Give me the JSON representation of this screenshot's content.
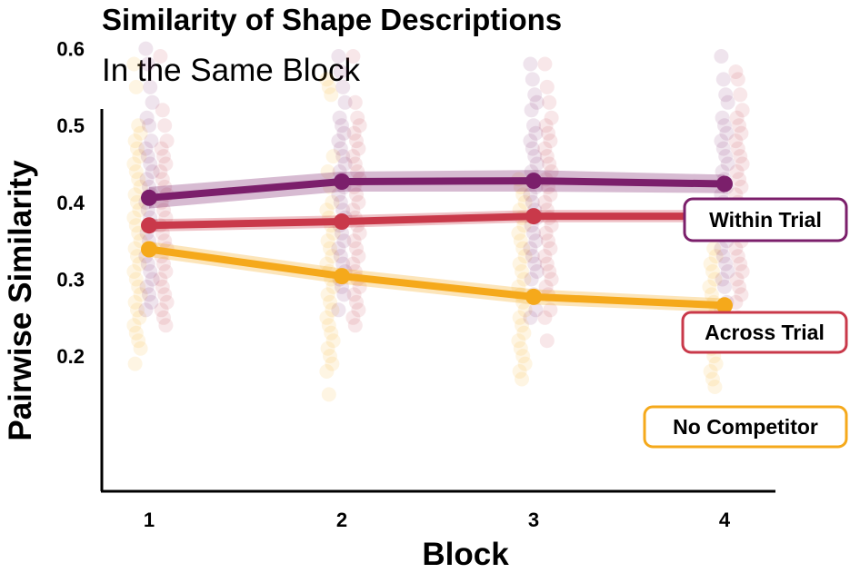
{
  "chart_data": {
    "type": "line",
    "title": "Similarity of Shape Descriptions",
    "subtitle": "In the Same Block",
    "xlabel": "Block",
    "ylabel": "Pairwise Similarity",
    "categories": [
      "1",
      "2",
      "3",
      "4"
    ],
    "yticks": [
      "0.2",
      "0.3",
      "0.4",
      "0.5",
      "0.6"
    ],
    "ylim": [
      0.13,
      0.62
    ],
    "grid": false,
    "legend": "direct labels at right",
    "series": [
      {
        "name": "Within Trial",
        "color": "#7b1f6b",
        "values": [
          0.406,
          0.427,
          0.428,
          0.424
        ],
        "ci_low": [
          0.392,
          0.414,
          0.414,
          0.412
        ],
        "ci_high": [
          0.42,
          0.44,
          0.442,
          0.436
        ],
        "points": [
          [
            0.6,
            0.58,
            0.55,
            0.53,
            0.51,
            0.5,
            0.48,
            0.47,
            0.46,
            0.45,
            0.44,
            0.43,
            0.42,
            0.41,
            0.4,
            0.39,
            0.38,
            0.37,
            0.36,
            0.35,
            0.34,
            0.33,
            0.32,
            0.31,
            0.3,
            0.29,
            0.28,
            0.27,
            0.26
          ],
          [
            0.59,
            0.57,
            0.55,
            0.53,
            0.51,
            0.5,
            0.49,
            0.48,
            0.47,
            0.46,
            0.45,
            0.44,
            0.43,
            0.42,
            0.41,
            0.4,
            0.39,
            0.38,
            0.37,
            0.36,
            0.35,
            0.34,
            0.33,
            0.32,
            0.31,
            0.3,
            0.29,
            0.28,
            0.26
          ],
          [
            0.58,
            0.56,
            0.54,
            0.53,
            0.52,
            0.5,
            0.49,
            0.48,
            0.47,
            0.46,
            0.45,
            0.44,
            0.43,
            0.42,
            0.41,
            0.4,
            0.39,
            0.38,
            0.37,
            0.36,
            0.35,
            0.34,
            0.33,
            0.32,
            0.31,
            0.3,
            0.28,
            0.26,
            0.25
          ],
          [
            0.59,
            0.56,
            0.54,
            0.53,
            0.51,
            0.5,
            0.49,
            0.48,
            0.47,
            0.46,
            0.45,
            0.44,
            0.43,
            0.42,
            0.41,
            0.4,
            0.39,
            0.38,
            0.37,
            0.36,
            0.35,
            0.34,
            0.33,
            0.32,
            0.31,
            0.3,
            0.29,
            0.27,
            0.26
          ]
        ]
      },
      {
        "name": "Across Trial",
        "color": "#c9394a",
        "values": [
          0.37,
          0.375,
          0.382,
          0.382
        ],
        "ci_low": [
          0.362,
          0.367,
          0.374,
          0.374
        ],
        "ci_high": [
          0.378,
          0.383,
          0.39,
          0.39
        ],
        "points": [
          [
            0.59,
            0.52,
            0.5,
            0.48,
            0.47,
            0.46,
            0.45,
            0.44,
            0.43,
            0.42,
            0.41,
            0.4,
            0.39,
            0.38,
            0.37,
            0.36,
            0.35,
            0.34,
            0.33,
            0.32,
            0.31,
            0.3,
            0.29,
            0.28,
            0.27,
            0.26,
            0.25,
            0.24
          ],
          [
            0.59,
            0.53,
            0.51,
            0.5,
            0.49,
            0.48,
            0.47,
            0.46,
            0.45,
            0.44,
            0.43,
            0.42,
            0.41,
            0.4,
            0.39,
            0.38,
            0.37,
            0.36,
            0.35,
            0.34,
            0.33,
            0.32,
            0.31,
            0.3,
            0.29,
            0.28,
            0.27,
            0.26,
            0.25,
            0.24
          ],
          [
            0.58,
            0.55,
            0.53,
            0.51,
            0.5,
            0.49,
            0.48,
            0.47,
            0.46,
            0.45,
            0.44,
            0.43,
            0.42,
            0.41,
            0.4,
            0.39,
            0.38,
            0.37,
            0.36,
            0.35,
            0.34,
            0.33,
            0.32,
            0.31,
            0.3,
            0.29,
            0.28,
            0.26,
            0.25,
            0.22
          ],
          [
            0.57,
            0.56,
            0.54,
            0.52,
            0.51,
            0.5,
            0.49,
            0.48,
            0.47,
            0.46,
            0.45,
            0.44,
            0.43,
            0.42,
            0.41,
            0.4,
            0.39,
            0.38,
            0.37,
            0.36,
            0.35,
            0.34,
            0.33,
            0.32,
            0.31,
            0.3,
            0.29,
            0.28,
            0.27,
            0.25
          ]
        ]
      },
      {
        "name": "No Competitor",
        "color": "#f5a91b",
        "values": [
          0.339,
          0.304,
          0.277,
          0.266
        ],
        "ci_low": [
          0.329,
          0.294,
          0.267,
          0.257
        ],
        "ci_high": [
          0.349,
          0.314,
          0.287,
          0.275
        ],
        "points": [
          [
            0.58,
            0.55,
            0.5,
            0.49,
            0.48,
            0.47,
            0.46,
            0.45,
            0.44,
            0.43,
            0.42,
            0.41,
            0.4,
            0.39,
            0.38,
            0.37,
            0.36,
            0.35,
            0.34,
            0.33,
            0.32,
            0.31,
            0.3,
            0.29,
            0.28,
            0.27,
            0.26,
            0.25,
            0.24,
            0.23,
            0.22,
            0.21,
            0.19
          ],
          [
            0.56,
            0.55,
            0.54,
            0.46,
            0.44,
            0.42,
            0.4,
            0.39,
            0.38,
            0.37,
            0.36,
            0.35,
            0.34,
            0.33,
            0.32,
            0.31,
            0.3,
            0.29,
            0.28,
            0.27,
            0.26,
            0.25,
            0.24,
            0.23,
            0.22,
            0.21,
            0.2,
            0.19,
            0.18,
            0.15
          ],
          [
            0.43,
            0.42,
            0.41,
            0.4,
            0.39,
            0.38,
            0.37,
            0.36,
            0.35,
            0.34,
            0.33,
            0.32,
            0.31,
            0.3,
            0.29,
            0.28,
            0.27,
            0.26,
            0.25,
            0.24,
            0.23,
            0.22,
            0.21,
            0.2,
            0.19,
            0.18,
            0.17
          ],
          [
            0.39,
            0.36,
            0.34,
            0.33,
            0.32,
            0.31,
            0.3,
            0.29,
            0.28,
            0.27,
            0.26,
            0.25,
            0.24,
            0.23,
            0.22,
            0.21,
            0.2,
            0.19,
            0.18,
            0.17,
            0.16
          ]
        ]
      }
    ],
    "labels": [
      {
        "text": "Within Trial",
        "series": "Within Trial"
      },
      {
        "text": "Across Trial",
        "series": "Across Trial"
      },
      {
        "text": "No Competitor",
        "series": "No Competitor"
      }
    ]
  }
}
